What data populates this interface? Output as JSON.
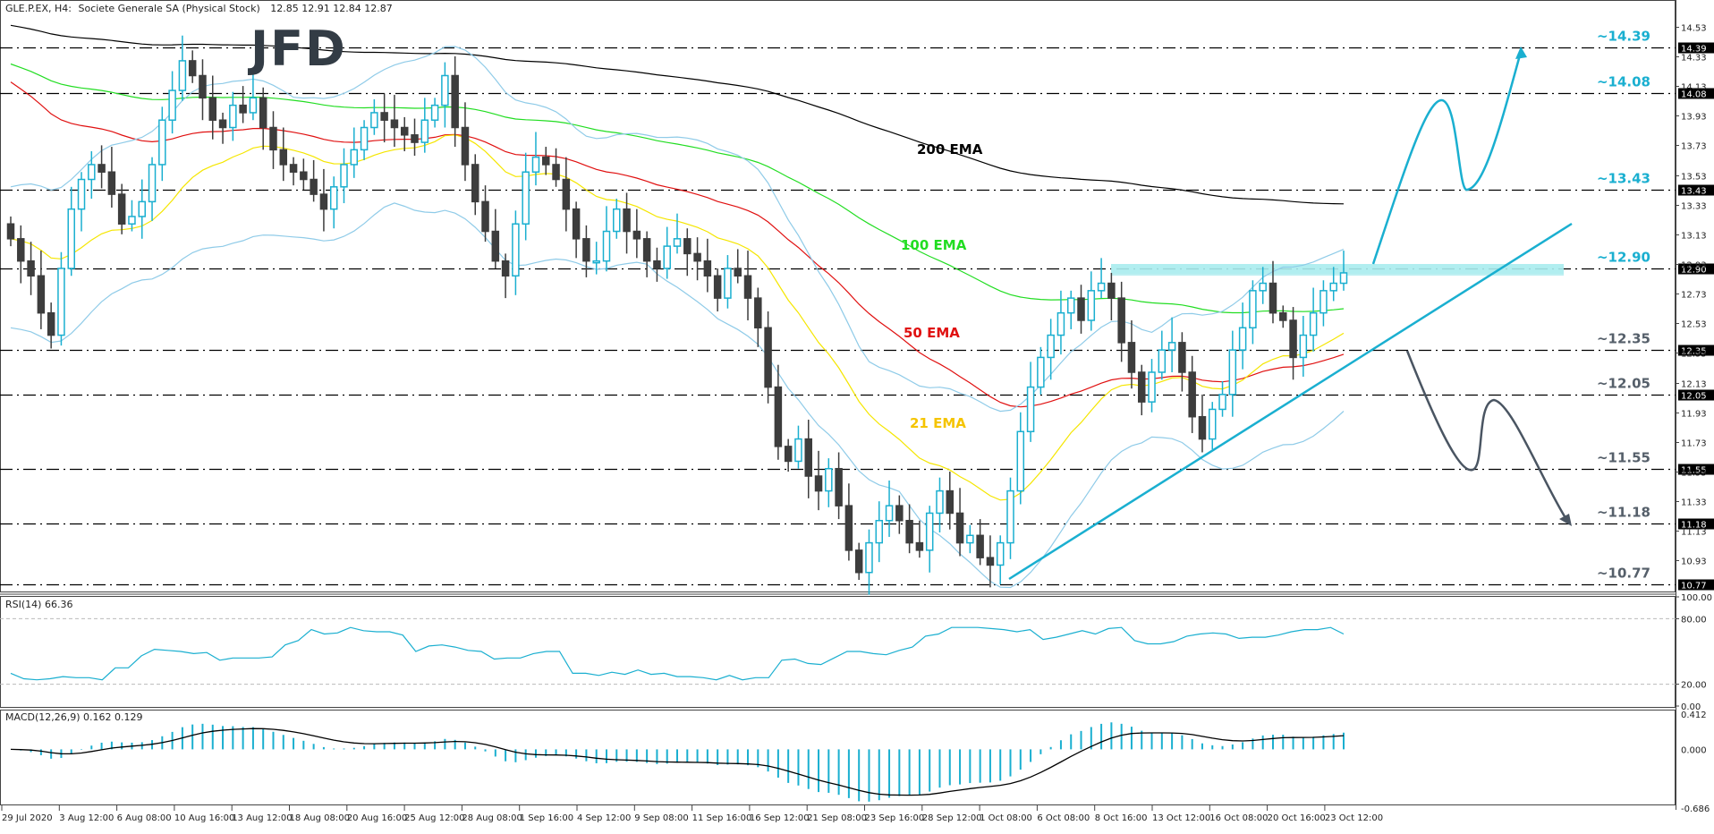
{
  "header": {
    "symbol": "GLE.P.EX, H4:",
    "instrument": "Societe Generale SA (Physical Stock)",
    "ohlc": "12.85 12.91 12.84 12.87",
    "logo": "JFD"
  },
  "colors": {
    "bull": "#1aafd0",
    "bear": "#3d3d3d",
    "ema21": "#f5e600",
    "ema50": "#e01010",
    "ema100": "#22dd22",
    "ema200": "#000000",
    "bollinger": "#8fcbe8",
    "level_label": "#1aafd0",
    "level_label_down": "#555f6a",
    "zone": "#a8ecee",
    "trendline": "#1aafd0",
    "arrow_up": "#1aafd0",
    "arrow_down": "#4a5562",
    "rsi": "#1aafd0",
    "macd_hist": "#1aafd0",
    "macd_signal": "#000000"
  },
  "labels": {
    "ema200": "200 EMA",
    "ema100": "100 EMA",
    "ema50": "50 EMA",
    "ema21": "21 EMA"
  },
  "rsi": {
    "label": "RSI(14) 66.36"
  },
  "macd": {
    "label": "MACD(12,26,9) 0.162 0.129"
  },
  "chart_data": [
    {
      "type": "candlestick",
      "title": "GLE.P.EX, H4: Societe Generale SA (Physical Stock)",
      "last_ohlc": {
        "open": 12.85,
        "high": 12.91,
        "low": 12.84,
        "close": 12.87
      },
      "ylim": [
        10.71,
        14.62
      ],
      "y_ticks": [
        14.53,
        14.33,
        14.13,
        13.93,
        13.73,
        13.53,
        13.33,
        13.13,
        12.93,
        12.73,
        12.53,
        12.33,
        12.13,
        11.93,
        11.73,
        11.53,
        11.33,
        11.13,
        10.93
      ],
      "x_ticks": [
        "29 Jul 2020",
        "3 Aug 12:00",
        "6 Aug 08:00",
        "10 Aug 16:00",
        "13 Aug 12:00",
        "18 Aug 08:00",
        "20 Aug 16:00",
        "25 Aug 12:00",
        "28 Aug 08:00",
        "1 Sep 16:00",
        "4 Sep 12:00",
        "9 Sep 08:00",
        "11 Sep 16:00",
        "16 Sep 12:00",
        "21 Sep 08:00",
        "23 Sep 16:00",
        "28 Sep 12:00",
        "1 Oct 08:00",
        "6 Oct 08:00",
        "8 Oct 16:00",
        "13 Oct 12:00",
        "16 Oct 08:00",
        "20 Oct 16:00",
        "23 Oct 12:00"
      ],
      "levels": [
        {
          "value": 14.39,
          "label": "~14.39",
          "role": "resistance"
        },
        {
          "value": 14.08,
          "label": "~14.08",
          "role": "resistance"
        },
        {
          "value": 13.43,
          "label": "~13.43",
          "role": "resistance"
        },
        {
          "value": 12.9,
          "label": "~12.90",
          "role": "resistance"
        },
        {
          "value": 12.35,
          "label": "~12.35",
          "role": "support"
        },
        {
          "value": 12.05,
          "label": "~12.05",
          "role": "support"
        },
        {
          "value": 11.55,
          "label": "~11.55",
          "role": "support"
        },
        {
          "value": 11.18,
          "label": "~11.18",
          "role": "support"
        },
        {
          "value": 10.77,
          "label": "~10.77",
          "role": "support"
        }
      ],
      "indicators": [
        "21 EMA",
        "50 EMA",
        "100 EMA",
        "200 EMA",
        "Bollinger Bands"
      ],
      "annotations": [
        "resistance zone ~12.90",
        "upward trendline from 1 Oct low",
        "bullish scenario arrow to 14.39",
        "bearish scenario arrow to 11.18"
      ],
      "closes_approx": [
        13.1,
        12.95,
        12.85,
        12.6,
        12.45,
        12.9,
        13.3,
        13.5,
        13.6,
        13.55,
        13.4,
        13.2,
        13.25,
        13.35,
        13.6,
        13.9,
        14.1,
        14.3,
        14.2,
        14.05,
        13.9,
        13.85,
        14.0,
        13.95,
        14.05,
        13.85,
        13.7,
        13.6,
        13.55,
        13.5,
        13.4,
        13.3,
        13.45,
        13.6,
        13.7,
        13.85,
        13.95,
        13.9,
        13.85,
        13.8,
        13.75,
        13.9,
        14.0,
        14.2,
        13.85,
        13.6,
        13.35,
        13.15,
        12.95,
        12.85,
        13.2,
        13.55,
        13.65,
        13.6,
        13.5,
        13.3,
        13.1,
        12.95,
        12.95,
        13.15,
        13.3,
        13.15,
        13.1,
        12.95,
        12.9,
        13.05,
        13.1,
        13.0,
        12.95,
        12.85,
        12.7,
        12.9,
        12.85,
        12.7,
        12.5,
        12.1,
        11.7,
        11.6,
        11.75,
        11.5,
        11.4,
        11.55,
        11.3,
        11.0,
        10.85,
        11.05,
        11.2,
        11.3,
        11.2,
        11.05,
        11.0,
        11.25,
        11.4,
        11.25,
        11.05,
        11.1,
        10.95,
        10.9,
        11.05,
        11.4,
        11.8,
        12.1,
        12.3,
        12.45,
        12.6,
        12.7,
        12.55,
        12.75,
        12.8,
        12.7,
        12.4,
        12.2,
        12.0,
        12.2,
        12.35,
        12.4,
        12.2,
        11.9,
        11.75,
        11.95,
        12.05,
        12.35,
        12.5,
        12.75,
        12.8,
        12.6,
        12.55,
        12.3,
        12.45,
        12.6,
        12.75,
        12.8,
        12.87
      ]
    },
    {
      "type": "line",
      "title": "RSI(14) 66.36",
      "ylim": [
        0,
        100
      ],
      "y_ticks": [
        100.0,
        80.0,
        20.0,
        0.0
      ],
      "last_value": 66.36,
      "values_approx": [
        30,
        25,
        24,
        25,
        27,
        26,
        26,
        24,
        35,
        35,
        46,
        52,
        51,
        50,
        48,
        49,
        42,
        44,
        44,
        44,
        45,
        56,
        60,
        70,
        66,
        67,
        72,
        69,
        68,
        68,
        65,
        50,
        55,
        56,
        54,
        51,
        50,
        43,
        44,
        44,
        48,
        50,
        50,
        30,
        30,
        28,
        31,
        29,
        33,
        29,
        30,
        27,
        27,
        26,
        24,
        28,
        24,
        26,
        26,
        42,
        43,
        39,
        38,
        44,
        50,
        50,
        48,
        47,
        51,
        54,
        64,
        66,
        72,
        72,
        72,
        71,
        70,
        68,
        70,
        61,
        63,
        66,
        69,
        66,
        71,
        72,
        60,
        57,
        57,
        59,
        64,
        66,
        67,
        66,
        62,
        63,
        63,
        65,
        68,
        70,
        70,
        72,
        66
      ]
    },
    {
      "type": "bar+line",
      "title": "MACD(12,26,9) 0.162 0.129",
      "ylim": [
        -0.686,
        0.412
      ],
      "y_ticks": [
        0.412,
        0.0,
        -0.686
      ],
      "last_macd": 0.162,
      "last_signal": 0.129
    }
  ]
}
